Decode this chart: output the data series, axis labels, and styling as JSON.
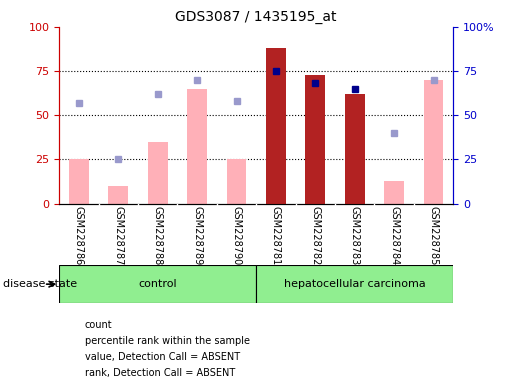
{
  "title": "GDS3087 / 1435195_at",
  "samples": [
    "GSM228786",
    "GSM228787",
    "GSM228788",
    "GSM228789",
    "GSM228790",
    "GSM228781",
    "GSM228782",
    "GSM228783",
    "GSM228784",
    "GSM228785"
  ],
  "n_control": 5,
  "n_cancer": 5,
  "count": [
    null,
    null,
    null,
    null,
    null,
    88,
    73,
    62,
    null,
    null
  ],
  "percentile_rank": [
    null,
    null,
    null,
    null,
    null,
    75,
    68,
    65,
    null,
    null
  ],
  "value_absent": [
    25,
    10,
    35,
    65,
    25,
    null,
    null,
    null,
    13,
    70
  ],
  "rank_absent": [
    57,
    25,
    62,
    70,
    58,
    null,
    null,
    null,
    40,
    70
  ],
  "bar_color_red": "#b22222",
  "bar_color_pink": "#ffb0b8",
  "point_color_blue": "#00008b",
  "point_color_lightblue": "#9999cc",
  "left_yaxis_color": "#cc0000",
  "right_yaxis_color": "#0000cc",
  "ylim": [
    0,
    100
  ],
  "control_label": "control",
  "cancer_label": "hepatocellular carcinoma",
  "disease_state_label": "disease state",
  "grid_lines": [
    25,
    50,
    75
  ],
  "bar_width": 0.5,
  "gray_box_color": "#cccccc",
  "green_box_color": "#90ee90"
}
